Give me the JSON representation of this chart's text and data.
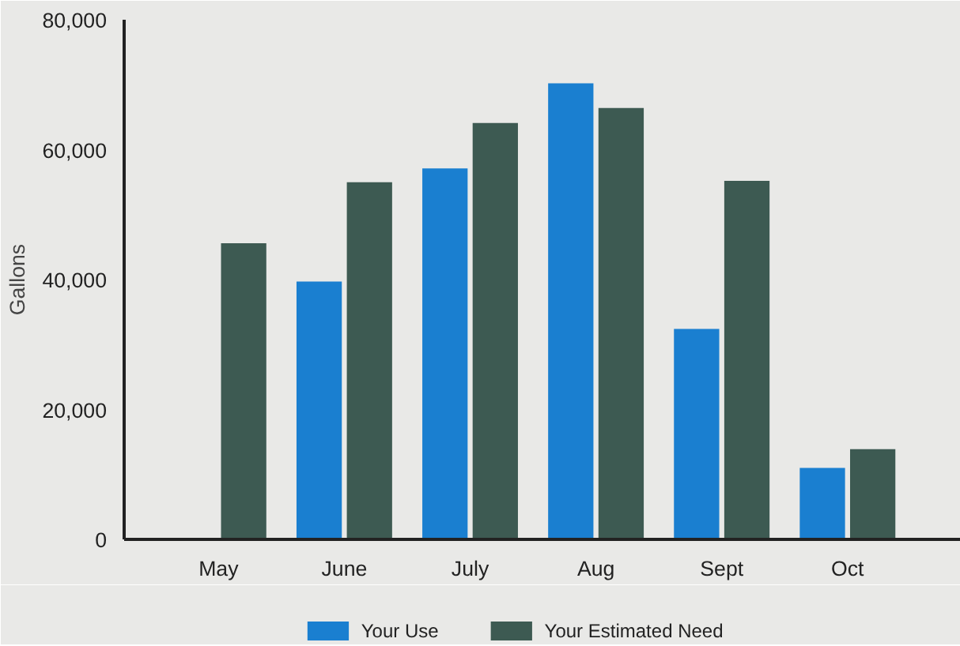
{
  "chart_data": {
    "type": "bar",
    "ylabel": "Gallons",
    "categories": [
      "May",
      "June",
      "July",
      "Aug",
      "Sept",
      "Oct"
    ],
    "series": [
      {
        "name": "Your Use",
        "color": "#1a7fd0",
        "values": [
          0,
          39700,
          57100,
          70200,
          32400,
          11000
        ]
      },
      {
        "name": "Your Estimated Need",
        "color": "#3d5a52",
        "values": [
          45600,
          55000,
          64100,
          66400,
          55200,
          13900
        ]
      }
    ],
    "ylim": [
      0,
      80000
    ],
    "yticks": [
      0,
      {
        "value": 20000,
        "label": "20,000"
      },
      {
        "value": 40000,
        "label": "40,000"
      },
      {
        "value": 60000,
        "label": "60,000"
      },
      {
        "value": 80000,
        "label": "80,000"
      }
    ],
    "legend": "bottom"
  }
}
